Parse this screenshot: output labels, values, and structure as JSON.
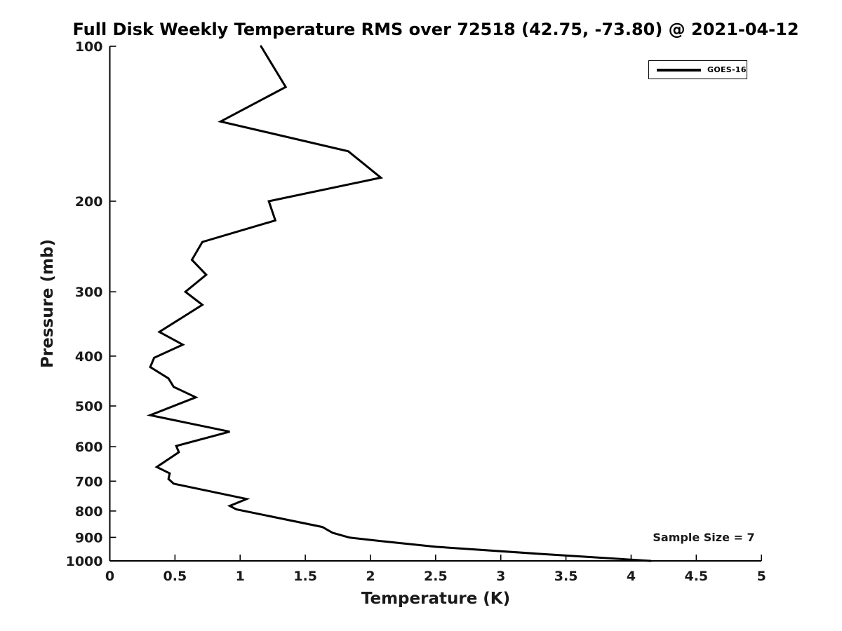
{
  "chart_data": {
    "type": "line",
    "title": "Full Disk Weekly Temperature RMS over 72518 (42.75, -73.80) @ 2021-04-12",
    "xlabel": "Temperature (K)",
    "ylabel": "Pressure (mb)",
    "xlim": [
      0,
      5
    ],
    "ylim": [
      100,
      1000
    ],
    "y_scale": "log",
    "y_direction": "pressure-increasing-downward",
    "grid": false,
    "background_color": "#ffffff",
    "line_color": "#000000",
    "x_ticks": [
      0,
      0.5,
      1,
      1.5,
      2,
      2.5,
      3,
      3.5,
      4,
      4.5,
      5
    ],
    "x_tick_labels": [
      "0",
      "0.5",
      "1",
      "1.5",
      "2",
      "2.5",
      "3",
      "3.5",
      "4",
      "4.5",
      "5"
    ],
    "y_ticks": [
      100,
      200,
      300,
      400,
      500,
      600,
      700,
      800,
      900,
      1000
    ],
    "y_tick_labels": [
      "100",
      "200",
      "300",
      "400",
      "500",
      "600",
      "700",
      "800",
      "900",
      "1000"
    ],
    "legend": {
      "position": "top-right",
      "entries": [
        {
          "label": "GOES-16",
          "color": "#000000",
          "line_width": 3
        }
      ]
    },
    "annotation": {
      "text": "Sample Size = 7",
      "position": "bottom-right"
    },
    "series": [
      {
        "name": "GOES-16",
        "color": "#000000",
        "points_format": [
          "temperature_K",
          "pressure_mb"
        ],
        "points": [
          [
            1.16,
            100
          ],
          [
            1.35,
            120
          ],
          [
            0.85,
            140
          ],
          [
            1.83,
            160
          ],
          [
            2.08,
            180
          ],
          [
            1.22,
            200
          ],
          [
            1.27,
            218
          ],
          [
            0.71,
            240
          ],
          [
            0.63,
            260
          ],
          [
            0.74,
            278
          ],
          [
            0.58,
            300
          ],
          [
            0.71,
            318
          ],
          [
            0.38,
            359
          ],
          [
            0.56,
            380
          ],
          [
            0.34,
            403
          ],
          [
            0.31,
            420
          ],
          [
            0.45,
            442
          ],
          [
            0.49,
            459
          ],
          [
            0.66,
            481
          ],
          [
            0.31,
            521
          ],
          [
            0.92,
            561
          ],
          [
            0.51,
            598
          ],
          [
            0.53,
            615
          ],
          [
            0.36,
            657
          ],
          [
            0.46,
            676
          ],
          [
            0.45,
            693
          ],
          [
            0.49,
            708
          ],
          [
            1.05,
            758
          ],
          [
            0.92,
            782
          ],
          [
            0.97,
            794
          ],
          [
            1.63,
            859
          ],
          [
            1.71,
            882
          ],
          [
            1.84,
            901
          ],
          [
            2.08,
            915
          ],
          [
            2.5,
            939
          ],
          [
            3.3,
            969
          ],
          [
            4.15,
            1000
          ]
        ]
      }
    ]
  }
}
